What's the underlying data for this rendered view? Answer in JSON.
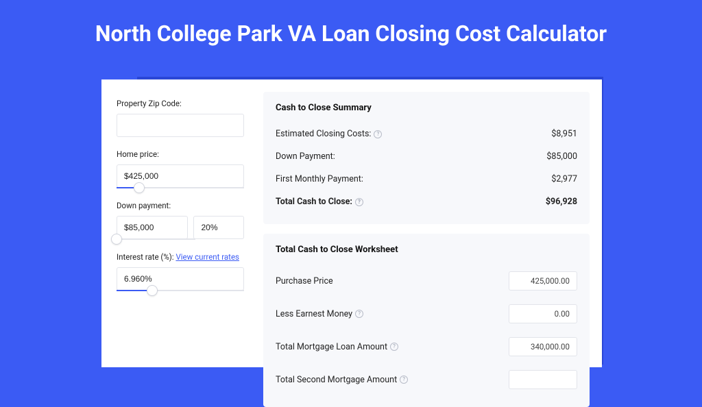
{
  "title": "North College Park VA Loan Closing Cost Calculator",
  "colors": {
    "page_bg": "#3b5bf4",
    "shadow": "#2a46d6",
    "card_bg": "#ffffff",
    "panel_bg": "#f7f8fb",
    "border": "#e2e4ea",
    "link": "#3b5bf4"
  },
  "form": {
    "zip": {
      "label": "Property Zip Code:",
      "value": ""
    },
    "home_price": {
      "label": "Home price:",
      "value": "$425,000",
      "slider_pct": 18
    },
    "down_payment": {
      "label": "Down payment:",
      "value": "$85,000",
      "pct_value": "20%",
      "slider_pct": 0
    },
    "interest": {
      "label": "Interest rate (%):",
      "link_text": "View current rates",
      "value": "6.960%",
      "slider_pct": 28
    }
  },
  "summary": {
    "title": "Cash to Close Summary",
    "rows": [
      {
        "label": "Estimated Closing Costs:",
        "help": true,
        "value": "$8,951",
        "bold": false
      },
      {
        "label": "Down Payment:",
        "help": false,
        "value": "$85,000",
        "bold": false
      },
      {
        "label": "First Monthly Payment:",
        "help": false,
        "value": "$2,977",
        "bold": false
      },
      {
        "label": "Total Cash to Close:",
        "help": true,
        "value": "$96,928",
        "bold": true
      }
    ]
  },
  "worksheet": {
    "title": "Total Cash to Close Worksheet",
    "rows": [
      {
        "label": "Purchase Price",
        "help": false,
        "value": "425,000.00"
      },
      {
        "label": "Less Earnest Money",
        "help": true,
        "value": "0.00"
      },
      {
        "label": "Total Mortgage Loan Amount",
        "help": true,
        "value": "340,000.00"
      },
      {
        "label": "Total Second Mortgage Amount",
        "help": true,
        "value": ""
      }
    ]
  }
}
